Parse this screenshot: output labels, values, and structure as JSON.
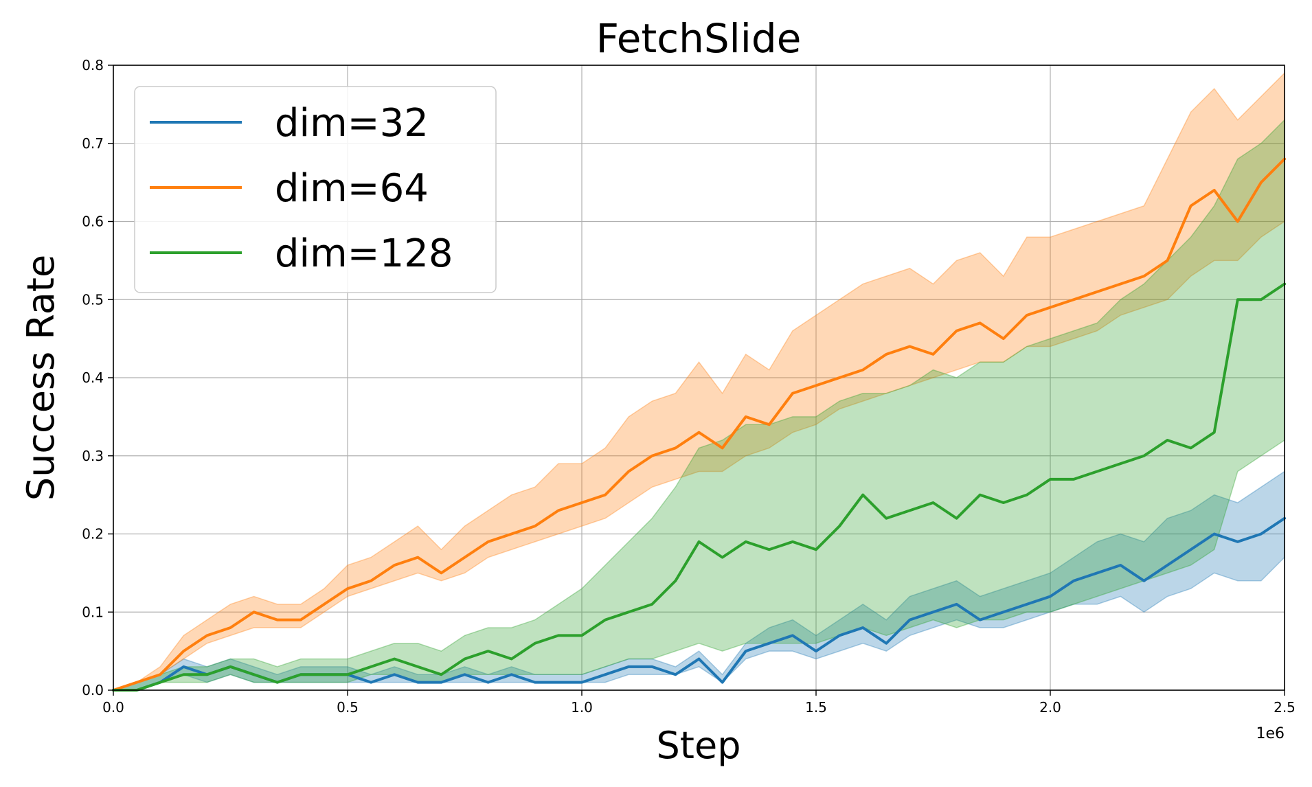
{
  "chart_data": {
    "type": "line",
    "title": "FetchSlide",
    "xlabel": "Step",
    "ylabel": "Success Rate",
    "x_offset_label": "1e6",
    "xlim": [
      0.0,
      2.5
    ],
    "ylim": [
      0.0,
      0.8
    ],
    "xticks": [
      "0.0",
      "0.5",
      "1.0",
      "1.5",
      "2.0",
      "2.5"
    ],
    "yticks": [
      "0.0",
      "0.1",
      "0.2",
      "0.3",
      "0.4",
      "0.5",
      "0.6",
      "0.7",
      "0.8"
    ],
    "grid": true,
    "legend_position": "upper-left",
    "x": [
      0.0,
      0.05,
      0.1,
      0.15,
      0.2,
      0.25,
      0.3,
      0.35,
      0.4,
      0.45,
      0.5,
      0.55,
      0.6,
      0.65,
      0.7,
      0.75,
      0.8,
      0.85,
      0.9,
      0.95,
      1.0,
      1.05,
      1.1,
      1.15,
      1.2,
      1.25,
      1.3,
      1.35,
      1.4,
      1.45,
      1.5,
      1.55,
      1.6,
      1.65,
      1.7,
      1.75,
      1.8,
      1.85,
      1.9,
      1.95,
      2.0,
      2.05,
      2.1,
      2.15,
      2.2,
      2.25,
      2.3,
      2.35,
      2.4,
      2.45,
      2.5
    ],
    "series": [
      {
        "name": "dim=32",
        "color": "#1f77b4",
        "values": [
          0.0,
          0.0,
          0.01,
          0.03,
          0.02,
          0.03,
          0.02,
          0.01,
          0.02,
          0.02,
          0.02,
          0.01,
          0.02,
          0.01,
          0.01,
          0.02,
          0.01,
          0.02,
          0.01,
          0.01,
          0.01,
          0.02,
          0.03,
          0.03,
          0.02,
          0.04,
          0.01,
          0.05,
          0.06,
          0.07,
          0.05,
          0.07,
          0.08,
          0.06,
          0.09,
          0.1,
          0.11,
          0.09,
          0.1,
          0.11,
          0.12,
          0.14,
          0.15,
          0.16,
          0.14,
          0.16,
          0.18,
          0.2,
          0.19,
          0.2,
          0.22
        ],
        "lower": [
          0.0,
          0.0,
          0.01,
          0.02,
          0.01,
          0.02,
          0.01,
          0.01,
          0.01,
          0.01,
          0.01,
          0.01,
          0.01,
          0.01,
          0.01,
          0.01,
          0.01,
          0.01,
          0.01,
          0.01,
          0.01,
          0.01,
          0.02,
          0.02,
          0.02,
          0.03,
          0.01,
          0.04,
          0.05,
          0.05,
          0.04,
          0.05,
          0.06,
          0.05,
          0.07,
          0.08,
          0.09,
          0.08,
          0.08,
          0.09,
          0.1,
          0.11,
          0.11,
          0.12,
          0.1,
          0.12,
          0.13,
          0.15,
          0.14,
          0.14,
          0.17
        ],
        "upper": [
          0.0,
          0.01,
          0.02,
          0.04,
          0.03,
          0.04,
          0.03,
          0.02,
          0.03,
          0.03,
          0.03,
          0.02,
          0.03,
          0.02,
          0.02,
          0.03,
          0.02,
          0.03,
          0.02,
          0.02,
          0.02,
          0.03,
          0.04,
          0.04,
          0.03,
          0.05,
          0.02,
          0.06,
          0.08,
          0.09,
          0.07,
          0.09,
          0.11,
          0.09,
          0.12,
          0.13,
          0.14,
          0.12,
          0.13,
          0.14,
          0.15,
          0.17,
          0.19,
          0.2,
          0.19,
          0.22,
          0.23,
          0.25,
          0.24,
          0.26,
          0.28
        ]
      },
      {
        "name": "dim=64",
        "color": "#ff7f0e",
        "values": [
          0.0,
          0.01,
          0.02,
          0.05,
          0.07,
          0.08,
          0.1,
          0.09,
          0.09,
          0.11,
          0.13,
          0.14,
          0.16,
          0.17,
          0.15,
          0.17,
          0.19,
          0.2,
          0.21,
          0.23,
          0.24,
          0.25,
          0.28,
          0.3,
          0.31,
          0.33,
          0.31,
          0.35,
          0.34,
          0.38,
          0.39,
          0.4,
          0.41,
          0.43,
          0.44,
          0.43,
          0.46,
          0.47,
          0.45,
          0.48,
          0.49,
          0.5,
          0.51,
          0.52,
          0.53,
          0.55,
          0.62,
          0.64,
          0.6,
          0.65,
          0.68
        ],
        "lower": [
          0.0,
          0.01,
          0.02,
          0.04,
          0.06,
          0.07,
          0.08,
          0.08,
          0.08,
          0.1,
          0.12,
          0.13,
          0.14,
          0.15,
          0.14,
          0.15,
          0.17,
          0.18,
          0.19,
          0.2,
          0.21,
          0.22,
          0.24,
          0.26,
          0.27,
          0.28,
          0.28,
          0.3,
          0.31,
          0.33,
          0.34,
          0.36,
          0.37,
          0.38,
          0.39,
          0.4,
          0.41,
          0.42,
          0.42,
          0.44,
          0.44,
          0.45,
          0.46,
          0.48,
          0.49,
          0.5,
          0.53,
          0.55,
          0.55,
          0.58,
          0.6
        ],
        "upper": [
          0.0,
          0.01,
          0.03,
          0.07,
          0.09,
          0.11,
          0.12,
          0.11,
          0.11,
          0.13,
          0.16,
          0.17,
          0.19,
          0.21,
          0.18,
          0.21,
          0.23,
          0.25,
          0.26,
          0.29,
          0.29,
          0.31,
          0.35,
          0.37,
          0.38,
          0.42,
          0.38,
          0.43,
          0.41,
          0.46,
          0.48,
          0.5,
          0.52,
          0.53,
          0.54,
          0.52,
          0.55,
          0.56,
          0.53,
          0.58,
          0.58,
          0.59,
          0.6,
          0.61,
          0.62,
          0.68,
          0.74,
          0.77,
          0.73,
          0.76,
          0.79
        ]
      },
      {
        "name": "dim=128",
        "color": "#2ca02c",
        "values": [
          0.0,
          0.0,
          0.01,
          0.02,
          0.02,
          0.03,
          0.02,
          0.01,
          0.02,
          0.02,
          0.02,
          0.03,
          0.04,
          0.03,
          0.02,
          0.04,
          0.05,
          0.04,
          0.06,
          0.07,
          0.07,
          0.09,
          0.1,
          0.11,
          0.14,
          0.19,
          0.17,
          0.19,
          0.18,
          0.19,
          0.18,
          0.21,
          0.25,
          0.22,
          0.23,
          0.24,
          0.22,
          0.25,
          0.24,
          0.25,
          0.27,
          0.27,
          0.28,
          0.29,
          0.3,
          0.32,
          0.31,
          0.33,
          0.5,
          0.5,
          0.52
        ],
        "lower": [
          0.0,
          0.0,
          0.01,
          0.01,
          0.01,
          0.02,
          0.01,
          0.01,
          0.01,
          0.01,
          0.01,
          0.02,
          0.02,
          0.01,
          0.01,
          0.02,
          0.02,
          0.02,
          0.02,
          0.02,
          0.02,
          0.03,
          0.04,
          0.04,
          0.05,
          0.06,
          0.05,
          0.06,
          0.06,
          0.06,
          0.06,
          0.07,
          0.08,
          0.07,
          0.08,
          0.09,
          0.08,
          0.09,
          0.09,
          0.1,
          0.1,
          0.11,
          0.12,
          0.13,
          0.14,
          0.15,
          0.16,
          0.18,
          0.28,
          0.3,
          0.32
        ],
        "upper": [
          0.0,
          0.01,
          0.02,
          0.03,
          0.03,
          0.04,
          0.04,
          0.03,
          0.04,
          0.04,
          0.04,
          0.05,
          0.06,
          0.06,
          0.05,
          0.07,
          0.08,
          0.08,
          0.09,
          0.11,
          0.13,
          0.16,
          0.19,
          0.22,
          0.26,
          0.31,
          0.32,
          0.34,
          0.34,
          0.35,
          0.35,
          0.37,
          0.38,
          0.38,
          0.39,
          0.41,
          0.4,
          0.42,
          0.42,
          0.44,
          0.45,
          0.46,
          0.47,
          0.5,
          0.52,
          0.55,
          0.58,
          0.62,
          0.68,
          0.7,
          0.73
        ]
      }
    ]
  }
}
